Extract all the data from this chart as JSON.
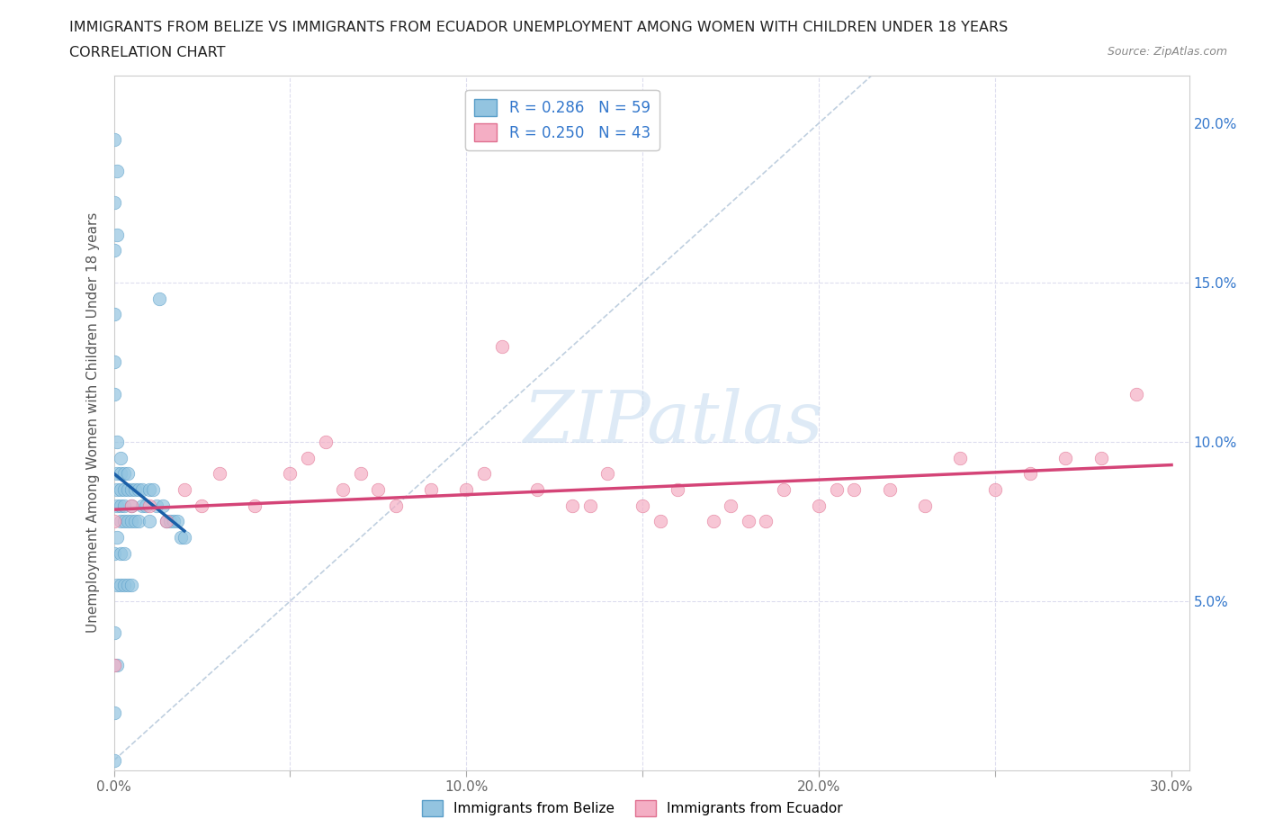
{
  "title_line1": "IMMIGRANTS FROM BELIZE VS IMMIGRANTS FROM ECUADOR UNEMPLOYMENT AMONG WOMEN WITH CHILDREN UNDER 18 YEARS",
  "title_line2": "CORRELATION CHART",
  "source": "Source: ZipAtlas.com",
  "ylabel": "Unemployment Among Women with Children Under 18 years",
  "xlim": [
    0.0,
    0.305
  ],
  "ylim": [
    -0.003,
    0.215
  ],
  "belize_color": "#93c4e0",
  "ecuador_color": "#f4aec4",
  "belize_edge": "#5a9ec8",
  "ecuador_edge": "#e07090",
  "trend_belize_color": "#1a5fa8",
  "trend_ecuador_color": "#d44477",
  "diagonal_color": "#b0c4d8",
  "R_belize": 0.286,
  "N_belize": 59,
  "R_ecuador": 0.25,
  "N_ecuador": 43,
  "legend_color": "#3377cc",
  "watermark_color": "#c8ddf0",
  "background_color": "#ffffff",
  "belize_x": [
    0.0,
    0.0,
    0.0,
    0.0,
    0.0,
    0.0,
    0.0,
    0.0,
    0.0,
    0.0,
    0.001,
    0.001,
    0.001,
    0.001,
    0.001,
    0.001,
    0.001,
    0.001,
    0.002,
    0.002,
    0.002,
    0.002,
    0.002,
    0.002,
    0.003,
    0.003,
    0.003,
    0.003,
    0.003,
    0.004,
    0.004,
    0.004,
    0.005,
    0.005,
    0.005,
    0.006,
    0.006,
    0.007,
    0.007,
    0.008,
    0.008,
    0.009,
    0.01,
    0.01,
    0.011,
    0.012,
    0.013,
    0.014,
    0.015,
    0.016,
    0.017,
    0.018,
    0.019,
    0.02,
    0.001,
    0.002,
    0.003,
    0.004,
    0.005
  ],
  "belize_y": [
    0.195,
    0.175,
    0.16,
    0.14,
    0.125,
    0.115,
    0.065,
    0.04,
    0.015,
    0.0,
    0.185,
    0.165,
    0.1,
    0.09,
    0.085,
    0.08,
    0.07,
    0.03,
    0.095,
    0.09,
    0.085,
    0.08,
    0.075,
    0.065,
    0.09,
    0.085,
    0.08,
    0.075,
    0.065,
    0.09,
    0.085,
    0.075,
    0.085,
    0.08,
    0.075,
    0.085,
    0.075,
    0.085,
    0.075,
    0.085,
    0.08,
    0.08,
    0.085,
    0.075,
    0.085,
    0.08,
    0.145,
    0.08,
    0.075,
    0.075,
    0.075,
    0.075,
    0.07,
    0.07,
    0.055,
    0.055,
    0.055,
    0.055,
    0.055
  ],
  "ecuador_x": [
    0.0,
    0.005,
    0.01,
    0.015,
    0.02,
    0.025,
    0.03,
    0.04,
    0.05,
    0.055,
    0.06,
    0.065,
    0.07,
    0.075,
    0.08,
    0.09,
    0.1,
    0.105,
    0.11,
    0.12,
    0.13,
    0.135,
    0.14,
    0.15,
    0.155,
    0.16,
    0.17,
    0.175,
    0.18,
    0.185,
    0.19,
    0.2,
    0.205,
    0.21,
    0.22,
    0.23,
    0.24,
    0.25,
    0.26,
    0.27,
    0.28,
    0.29,
    0.0
  ],
  "ecuador_y": [
    0.075,
    0.08,
    0.08,
    0.075,
    0.085,
    0.08,
    0.09,
    0.08,
    0.09,
    0.095,
    0.1,
    0.085,
    0.09,
    0.085,
    0.08,
    0.085,
    0.085,
    0.09,
    0.13,
    0.085,
    0.08,
    0.08,
    0.09,
    0.08,
    0.075,
    0.085,
    0.075,
    0.08,
    0.075,
    0.075,
    0.085,
    0.08,
    0.085,
    0.085,
    0.085,
    0.08,
    0.095,
    0.085,
    0.09,
    0.095,
    0.095,
    0.115,
    0.03
  ]
}
